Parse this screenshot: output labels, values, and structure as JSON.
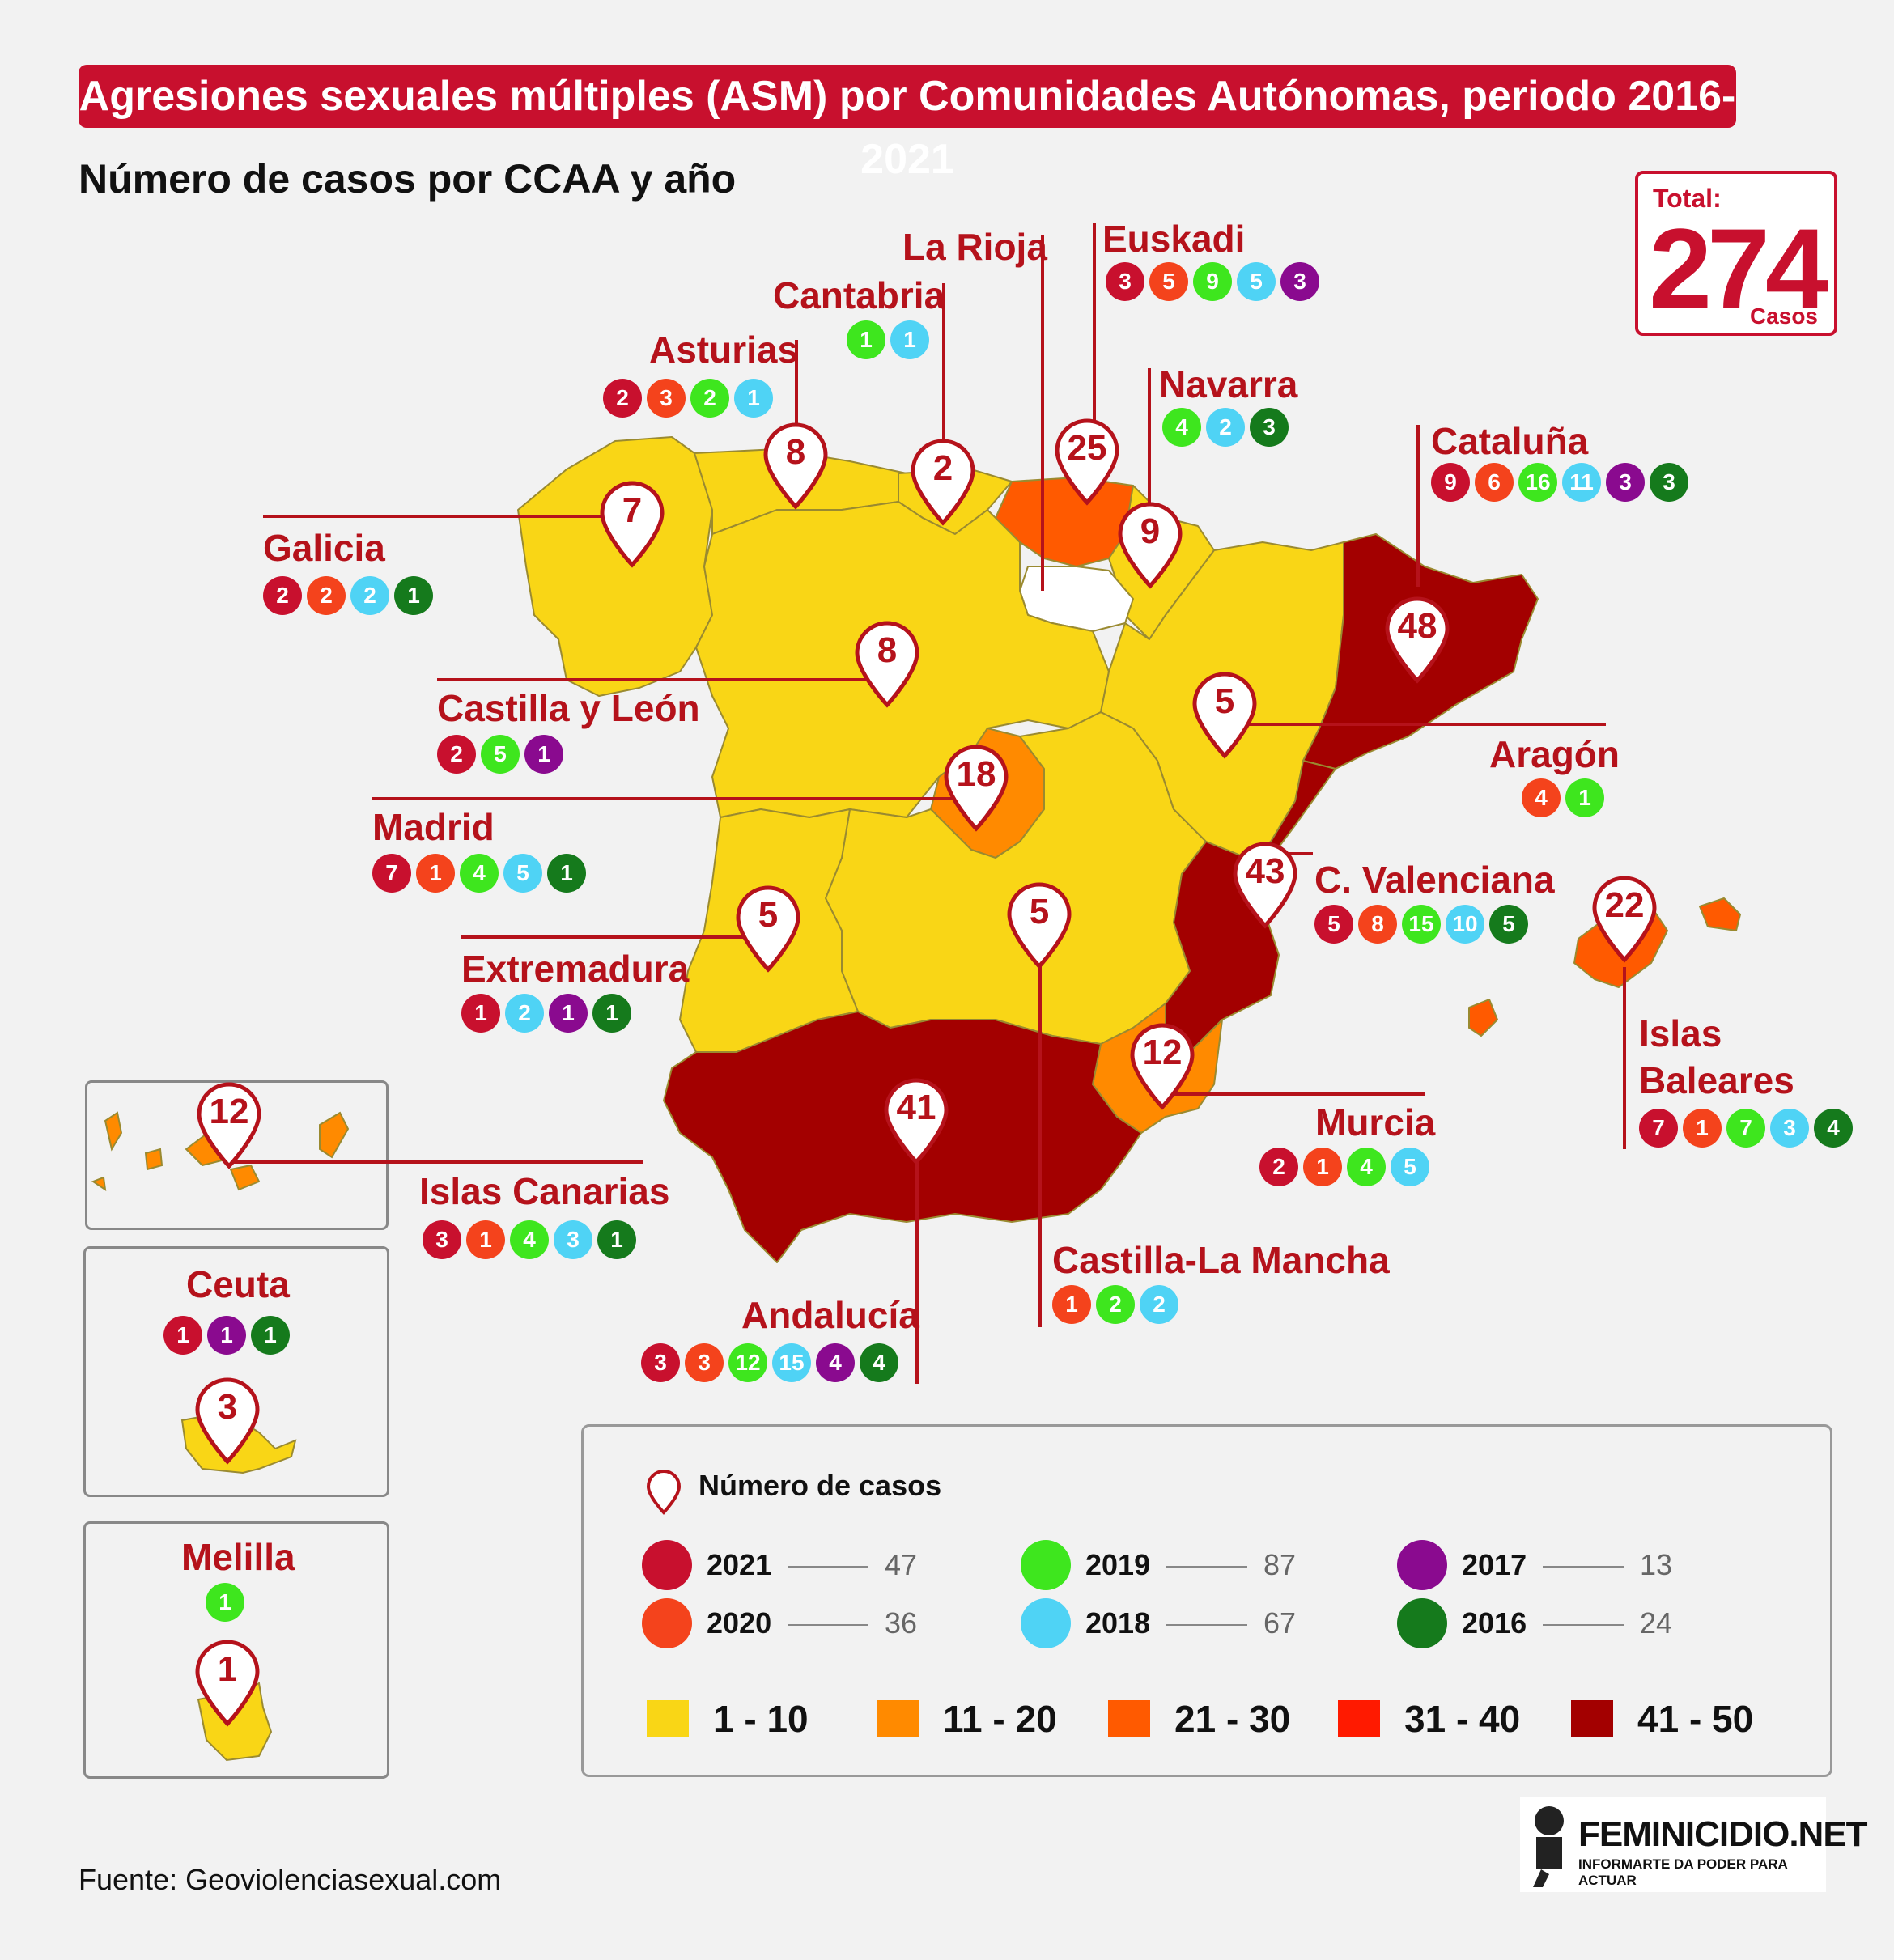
{
  "title": "Agresiones sexuales múltiples (ASM) por Comunidades Autónomas, periodo 2016-2021",
  "subtitle": "Número de casos por CCAA y año",
  "total": {
    "label": "Total:",
    "value": "274",
    "unit": "Casos"
  },
  "colors": {
    "2021": "#c8102e",
    "2020": "#f4431c",
    "2019": "#3ee61e",
    "2018": "#4fd3f5",
    "2017": "#8a0a8f",
    "2016": "#157a1c",
    "range_1_10": "#f9d616",
    "range_11_20": "#ff8a00",
    "range_21_30": "#ff5a00",
    "range_31_40": "#ff1a00",
    "range_41_50": "#a30000"
  },
  "regions": [
    {
      "id": "galicia",
      "name": "Galicia",
      "total": "7",
      "cases": [
        {
          "y": "2021",
          "v": "2"
        },
        {
          "y": "2020",
          "v": "2"
        },
        {
          "y": "2018",
          "v": "2"
        },
        {
          "y": "2016",
          "v": "1"
        }
      ]
    },
    {
      "id": "asturias",
      "name": "Asturias",
      "total": "8",
      "cases": [
        {
          "y": "2021",
          "v": "2"
        },
        {
          "y": "2020",
          "v": "3"
        },
        {
          "y": "2019",
          "v": "2"
        },
        {
          "y": "2018",
          "v": "1"
        }
      ]
    },
    {
      "id": "cantabria",
      "name": "Cantabria",
      "total": "2",
      "cases": [
        {
          "y": "2019",
          "v": "1"
        },
        {
          "y": "2018",
          "v": "1"
        }
      ]
    },
    {
      "id": "larioja",
      "name": "La Rioja",
      "total": "",
      "cases": []
    },
    {
      "id": "euskadi",
      "name": "Euskadi",
      "total": "25",
      "cases": [
        {
          "y": "2021",
          "v": "3"
        },
        {
          "y": "2020",
          "v": "5"
        },
        {
          "y": "2019",
          "v": "9"
        },
        {
          "y": "2018",
          "v": "5"
        },
        {
          "y": "2017",
          "v": "3"
        }
      ]
    },
    {
      "id": "navarra",
      "name": "Navarra",
      "total": "9",
      "cases": [
        {
          "y": "2019",
          "v": "4"
        },
        {
          "y": "2018",
          "v": "2"
        },
        {
          "y": "2016",
          "v": "3"
        }
      ]
    },
    {
      "id": "cataluna",
      "name": "Cataluña",
      "total": "48",
      "cases": [
        {
          "y": "2021",
          "v": "9"
        },
        {
          "y": "2020",
          "v": "6"
        },
        {
          "y": "2019",
          "v": "16"
        },
        {
          "y": "2018",
          "v": "11"
        },
        {
          "y": "2017",
          "v": "3"
        },
        {
          "y": "2016",
          "v": "3"
        }
      ]
    },
    {
      "id": "castillayleon",
      "name": "Castilla y León",
      "total": "8",
      "cases": [
        {
          "y": "2021",
          "v": "2"
        },
        {
          "y": "2019",
          "v": "5"
        },
        {
          "y": "2017",
          "v": "1"
        }
      ]
    },
    {
      "id": "aragon",
      "name": "Aragón",
      "total": "5",
      "cases": [
        {
          "y": "2020",
          "v": "4"
        },
        {
          "y": "2019",
          "v": "1"
        }
      ]
    },
    {
      "id": "madrid",
      "name": "Madrid",
      "total": "18",
      "cases": [
        {
          "y": "2021",
          "v": "7"
        },
        {
          "y": "2020",
          "v": "1"
        },
        {
          "y": "2019",
          "v": "4"
        },
        {
          "y": "2018",
          "v": "5"
        },
        {
          "y": "2016",
          "v": "1"
        }
      ]
    },
    {
      "id": "valenciana",
      "name": "C. Valenciana",
      "total": "43",
      "cases": [
        {
          "y": "2021",
          "v": "5"
        },
        {
          "y": "2020",
          "v": "8"
        },
        {
          "y": "2019",
          "v": "15"
        },
        {
          "y": "2018",
          "v": "10"
        },
        {
          "y": "2016",
          "v": "5"
        }
      ]
    },
    {
      "id": "extremadura",
      "name": "Extremadura",
      "total": "5",
      "cases": [
        {
          "y": "2021",
          "v": "1"
        },
        {
          "y": "2018",
          "v": "2"
        },
        {
          "y": "2017",
          "v": "1"
        },
        {
          "y": "2016",
          "v": "1"
        }
      ]
    },
    {
      "id": "castillalamancha",
      "name": "Castilla-La Mancha",
      "total": "5",
      "cases": [
        {
          "y": "2020",
          "v": "1"
        },
        {
          "y": "2019",
          "v": "2"
        },
        {
          "y": "2018",
          "v": "2"
        }
      ]
    },
    {
      "id": "baleares",
      "name": "Islas Baleares",
      "total": "22",
      "cases": [
        {
          "y": "2021",
          "v": "7"
        },
        {
          "y": "2020",
          "v": "1"
        },
        {
          "y": "2019",
          "v": "7"
        },
        {
          "y": "2018",
          "v": "3"
        },
        {
          "y": "2016",
          "v": "4"
        }
      ]
    },
    {
      "id": "murcia",
      "name": "Murcia",
      "total": "12",
      "cases": [
        {
          "y": "2021",
          "v": "2"
        },
        {
          "y": "2020",
          "v": "1"
        },
        {
          "y": "2019",
          "v": "4"
        },
        {
          "y": "2018",
          "v": "5"
        }
      ]
    },
    {
      "id": "andalucia",
      "name": "Andalucía",
      "total": "41",
      "cases": [
        {
          "y": "2021",
          "v": "3"
        },
        {
          "y": "2020",
          "v": "3"
        },
        {
          "y": "2019",
          "v": "12"
        },
        {
          "y": "2018",
          "v": "15"
        },
        {
          "y": "2017",
          "v": "4"
        },
        {
          "y": "2016",
          "v": "4"
        }
      ]
    },
    {
      "id": "canarias",
      "name": "Islas Canarias",
      "total": "12",
      "cases": [
        {
          "y": "2021",
          "v": "3"
        },
        {
          "y": "2020",
          "v": "1"
        },
        {
          "y": "2019",
          "v": "4"
        },
        {
          "y": "2018",
          "v": "3"
        },
        {
          "y": "2016",
          "v": "1"
        }
      ]
    },
    {
      "id": "ceuta",
      "name": "Ceuta",
      "total": "3",
      "cases": [
        {
          "y": "2021",
          "v": "1"
        },
        {
          "y": "2017",
          "v": "1"
        },
        {
          "y": "2016",
          "v": "1"
        }
      ]
    },
    {
      "id": "melilla",
      "name": "Melilla",
      "total": "1",
      "cases": [
        {
          "y": "2019",
          "v": "1"
        }
      ]
    }
  ],
  "legend": {
    "pin_label": "Número de casos",
    "years": [
      {
        "year": "2021",
        "total": "47"
      },
      {
        "year": "2020",
        "total": "36"
      },
      {
        "year": "2019",
        "total": "87"
      },
      {
        "year": "2018",
        "total": "67"
      },
      {
        "year": "2017",
        "total": "13"
      },
      {
        "year": "2016",
        "total": "24"
      }
    ],
    "ranges": [
      {
        "label": "1 - 10",
        "color": "#f9d616"
      },
      {
        "label": "11 - 20",
        "color": "#ff8a00"
      },
      {
        "label": "21 - 30",
        "color": "#ff5a00"
      },
      {
        "label": "31 - 40",
        "color": "#ff1a00"
      },
      {
        "label": "41 - 50",
        "color": "#a30000"
      }
    ]
  },
  "source": "Fuente: Geoviolenciasexual.com",
  "logo": {
    "name": "FEMINICIDIO.NET",
    "tagline": "INFORMARTE DA PODER PARA ACTUAR"
  }
}
